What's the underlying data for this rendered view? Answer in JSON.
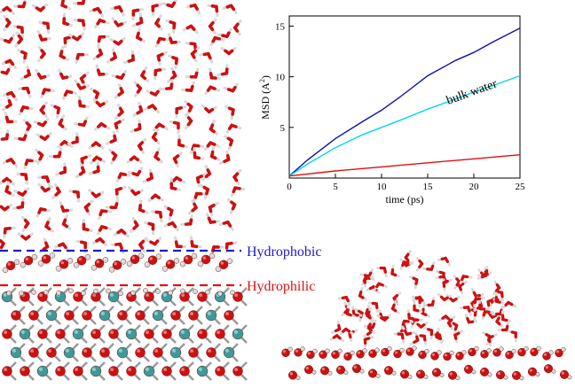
{
  "labels": {
    "hydrophobic": "Hydrophobic",
    "hydrophilic": "Hydrophilic",
    "hydrophobic_color": "#1a1ad0",
    "hydrophilic_color": "#e01010"
  },
  "colors": {
    "oxygen": "#cc1111",
    "hydrogen": "#d9d9d9",
    "metal": "#3d9a9a",
    "bond": "#9a9a9a"
  },
  "chart_data": {
    "type": "line",
    "xlabel": "time (ps)",
    "ylabel_main": "MSD (A",
    "ylabel_sup": "2",
    "ylabel_tail": ")",
    "xlim": [
      0,
      25
    ],
    "ylim": [
      0,
      16
    ],
    "xticks": [
      0,
      5,
      10,
      15,
      20,
      25
    ],
    "yticks": [
      5,
      10,
      15
    ],
    "annotation": "bulk water",
    "series": [
      {
        "color": "#1010b0",
        "x": [
          0,
          2,
          5,
          8,
          10,
          12,
          15,
          18,
          20,
          22,
          25
        ],
        "y": [
          0.2,
          1.8,
          3.9,
          5.6,
          6.7,
          8.0,
          10.1,
          11.6,
          12.4,
          13.4,
          14.8
        ]
      },
      {
        "color": "#00d8e8",
        "x": [
          0,
          2,
          5,
          8,
          10,
          12,
          15,
          18,
          20,
          22,
          25
        ],
        "y": [
          0.2,
          1.4,
          3.0,
          4.3,
          5.0,
          5.7,
          6.8,
          7.8,
          8.5,
          9.1,
          10.1
        ]
      },
      {
        "color": "#e01010",
        "x": [
          0,
          5,
          10,
          15,
          20,
          25
        ],
        "y": [
          0.2,
          0.7,
          1.1,
          1.5,
          1.9,
          2.3
        ]
      }
    ]
  }
}
